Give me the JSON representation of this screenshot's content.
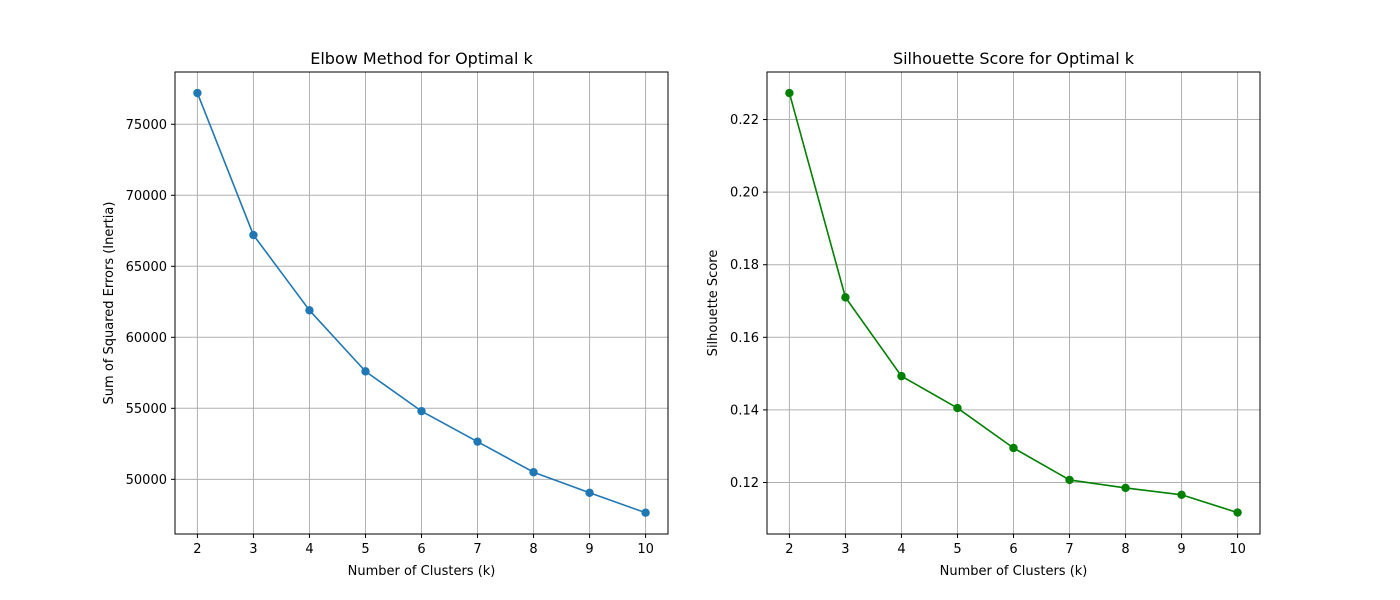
{
  "chart_data": [
    {
      "type": "line",
      "title": "Elbow Method for Optimal k",
      "xlabel": "Number of Clusters (k)",
      "ylabel": "Sum of Squared Errors (Inertia)",
      "x": [
        2,
        3,
        4,
        5,
        6,
        7,
        8,
        9,
        10
      ],
      "series": [
        {
          "values": [
            77200,
            67200,
            61900,
            57600,
            54800,
            52650,
            50500,
            49050,
            47650
          ],
          "color": "#1f77b4",
          "marker": "circle"
        }
      ],
      "xticks": [
        2,
        3,
        4,
        5,
        6,
        7,
        8,
        9,
        10
      ],
      "yticks": [
        50000,
        55000,
        60000,
        65000,
        70000,
        75000
      ],
      "xlim": [
        1.6,
        10.4
      ],
      "ylim": [
        46150,
        78680
      ],
      "grid": true
    },
    {
      "type": "line",
      "title": "Silhouette Score for Optimal k",
      "xlabel": "Number of Clusters (k)",
      "ylabel": "Silhouette Score",
      "x": [
        2,
        3,
        4,
        5,
        6,
        7,
        8,
        9,
        10
      ],
      "series": [
        {
          "values": [
            0.2273,
            0.171,
            0.1493,
            0.1405,
            0.1295,
            0.1207,
            0.1185,
            0.1166,
            0.1117
          ],
          "color": "#008000",
          "marker": "circle"
        }
      ],
      "xticks": [
        2,
        3,
        4,
        5,
        6,
        7,
        8,
        9,
        10
      ],
      "yticks": [
        0.12,
        0.14,
        0.16,
        0.18,
        0.2,
        0.22
      ],
      "ytick_labels": [
        "0.12",
        "0.14",
        "0.16",
        "0.18",
        "0.20",
        "0.22"
      ],
      "xlim": [
        1.6,
        10.4
      ],
      "ylim": [
        0.1058,
        0.2331
      ],
      "grid": true
    }
  ]
}
